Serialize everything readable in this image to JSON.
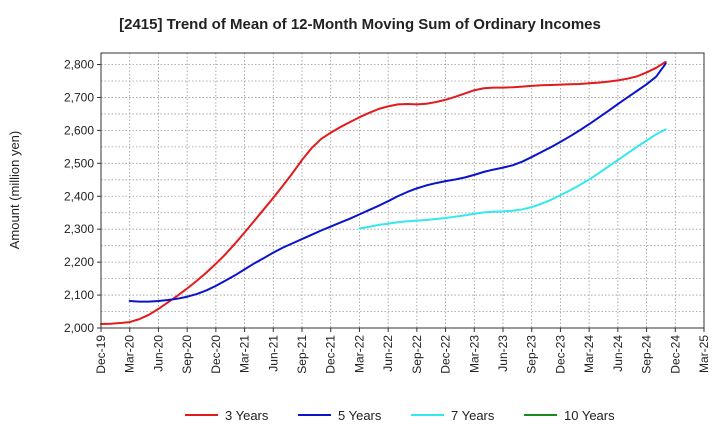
{
  "chart_data": {
    "type": "line",
    "title": "[2415]  Trend of Mean of 12-Month Moving Sum of Ordinary Incomes",
    "xlabel": "",
    "ylabel": "Amount (million yen)",
    "ylim": [
      2000,
      2835
    ],
    "yticks": [
      2000,
      2100,
      2200,
      2300,
      2400,
      2500,
      2600,
      2700,
      2800
    ],
    "ytick_labels": [
      "2,000",
      "2,100",
      "2,200",
      "2,300",
      "2,400",
      "2,500",
      "2,600",
      "2,700",
      "2,800"
    ],
    "xticks": [
      "Dec-19",
      "Mar-20",
      "Jun-20",
      "Sep-20",
      "Dec-20",
      "Mar-21",
      "Jun-21",
      "Sep-21",
      "Dec-21",
      "Mar-22",
      "Jun-22",
      "Sep-22",
      "Dec-22",
      "Mar-23",
      "Jun-23",
      "Sep-23",
      "Dec-23",
      "Mar-24",
      "Jun-24",
      "Sep-24",
      "Dec-24",
      "Mar-25"
    ],
    "x_unit": "months since Dec-19",
    "grid": true,
    "legend_position": "bottom",
    "series": [
      {
        "name": "3 Years",
        "color": "#e31a1c",
        "points": [
          [
            0,
            2012
          ],
          [
            1,
            2013
          ],
          [
            2,
            2015
          ],
          [
            3,
            2018
          ],
          [
            4,
            2027
          ],
          [
            5,
            2040
          ],
          [
            6,
            2058
          ],
          [
            7,
            2078
          ],
          [
            8,
            2098
          ],
          [
            9,
            2120
          ],
          [
            10,
            2143
          ],
          [
            11,
            2168
          ],
          [
            12,
            2195
          ],
          [
            13,
            2224
          ],
          [
            14,
            2256
          ],
          [
            15,
            2290
          ],
          [
            16,
            2325
          ],
          [
            17,
            2360
          ],
          [
            18,
            2395
          ],
          [
            19,
            2432
          ],
          [
            20,
            2470
          ],
          [
            21,
            2510
          ],
          [
            22,
            2546
          ],
          [
            23,
            2574
          ],
          [
            24,
            2593
          ],
          [
            25,
            2610
          ],
          [
            26,
            2625
          ],
          [
            27,
            2640
          ],
          [
            28,
            2653
          ],
          [
            29,
            2665
          ],
          [
            30,
            2673
          ],
          [
            31,
            2679
          ],
          [
            32,
            2680
          ],
          [
            33,
            2679
          ],
          [
            34,
            2681
          ],
          [
            35,
            2686
          ],
          [
            36,
            2693
          ],
          [
            37,
            2702
          ],
          [
            38,
            2712
          ],
          [
            39,
            2722
          ],
          [
            40,
            2728
          ],
          [
            41,
            2730
          ],
          [
            42,
            2730
          ],
          [
            43,
            2731
          ],
          [
            44,
            2733
          ],
          [
            45,
            2735
          ],
          [
            46,
            2737
          ],
          [
            47,
            2738
          ],
          [
            48,
            2739
          ],
          [
            49,
            2740
          ],
          [
            50,
            2741
          ],
          [
            51,
            2743
          ],
          [
            52,
            2745
          ],
          [
            53,
            2748
          ],
          [
            54,
            2752
          ],
          [
            55,
            2757
          ],
          [
            56,
            2764
          ],
          [
            57,
            2776
          ],
          [
            58,
            2790
          ],
          [
            59,
            2808
          ]
        ]
      },
      {
        "name": "5 Years",
        "color": "#0a14c8",
        "points": [
          [
            3,
            2082
          ],
          [
            4,
            2080
          ],
          [
            5,
            2080
          ],
          [
            6,
            2082
          ],
          [
            7,
            2085
          ],
          [
            8,
            2089
          ],
          [
            9,
            2095
          ],
          [
            10,
            2103
          ],
          [
            11,
            2114
          ],
          [
            12,
            2128
          ],
          [
            13,
            2144
          ],
          [
            14,
            2160
          ],
          [
            15,
            2178
          ],
          [
            16,
            2196
          ],
          [
            17,
            2212
          ],
          [
            18,
            2229
          ],
          [
            19,
            2244
          ],
          [
            20,
            2257
          ],
          [
            21,
            2270
          ],
          [
            22,
            2283
          ],
          [
            23,
            2296
          ],
          [
            24,
            2308
          ],
          [
            25,
            2320
          ],
          [
            26,
            2332
          ],
          [
            27,
            2345
          ],
          [
            28,
            2358
          ],
          [
            29,
            2371
          ],
          [
            30,
            2385
          ],
          [
            31,
            2400
          ],
          [
            32,
            2413
          ],
          [
            33,
            2424
          ],
          [
            34,
            2433
          ],
          [
            35,
            2440
          ],
          [
            36,
            2446
          ],
          [
            37,
            2451
          ],
          [
            38,
            2457
          ],
          [
            39,
            2465
          ],
          [
            40,
            2474
          ],
          [
            41,
            2481
          ],
          [
            42,
            2487
          ],
          [
            43,
            2494
          ],
          [
            44,
            2505
          ],
          [
            45,
            2519
          ],
          [
            46,
            2534
          ],
          [
            47,
            2549
          ],
          [
            48,
            2565
          ],
          [
            49,
            2582
          ],
          [
            50,
            2600
          ],
          [
            51,
            2619
          ],
          [
            52,
            2639
          ],
          [
            53,
            2659
          ],
          [
            54,
            2680
          ],
          [
            55,
            2700
          ],
          [
            56,
            2720
          ],
          [
            57,
            2740
          ],
          [
            58,
            2763
          ],
          [
            59,
            2803
          ]
        ]
      },
      {
        "name": "7 Years",
        "color": "#33e8ee",
        "points": [
          [
            27,
            2302
          ],
          [
            28,
            2307
          ],
          [
            29,
            2313
          ],
          [
            30,
            2317
          ],
          [
            31,
            2321
          ],
          [
            32,
            2324
          ],
          [
            33,
            2326
          ],
          [
            34,
            2328
          ],
          [
            35,
            2331
          ],
          [
            36,
            2334
          ],
          [
            37,
            2338
          ],
          [
            38,
            2342
          ],
          [
            39,
            2347
          ],
          [
            40,
            2351
          ],
          [
            41,
            2353
          ],
          [
            42,
            2354
          ],
          [
            43,
            2356
          ],
          [
            44,
            2360
          ],
          [
            45,
            2367
          ],
          [
            46,
            2377
          ],
          [
            47,
            2389
          ],
          [
            48,
            2403
          ],
          [
            49,
            2418
          ],
          [
            50,
            2434
          ],
          [
            51,
            2451
          ],
          [
            52,
            2470
          ],
          [
            53,
            2490
          ],
          [
            54,
            2510
          ],
          [
            55,
            2530
          ],
          [
            56,
            2550
          ],
          [
            57,
            2569
          ],
          [
            58,
            2588
          ],
          [
            59,
            2603
          ]
        ]
      },
      {
        "name": "10 Years",
        "color": "#1a8a1a",
        "points": []
      }
    ]
  }
}
